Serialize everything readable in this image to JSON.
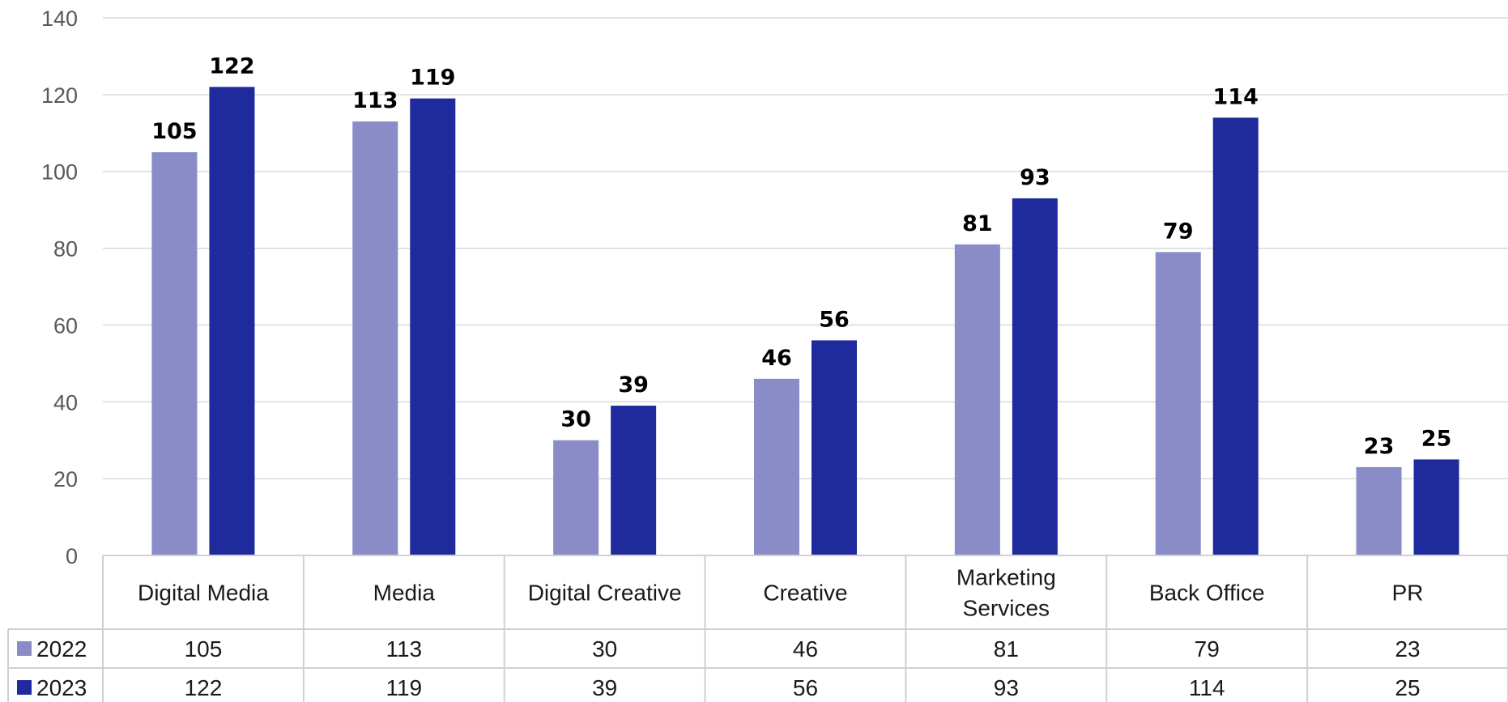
{
  "chart_data": {
    "type": "bar",
    "title": "",
    "xlabel": "",
    "ylabel": "",
    "ylim": [
      0,
      140
    ],
    "yticks": [
      0,
      20,
      40,
      60,
      80,
      100,
      120,
      140
    ],
    "grid": true,
    "legend": "data-table",
    "categories": [
      [
        "Digital Media"
      ],
      [
        "Media"
      ],
      [
        "Digital Creative"
      ],
      [
        "Creative"
      ],
      [
        "Marketing",
        "Services"
      ],
      [
        "Back Office"
      ],
      [
        "PR"
      ]
    ],
    "series": [
      {
        "name": "2022",
        "color": "#8a8cc8",
        "values": [
          105,
          113,
          30,
          46,
          81,
          79,
          23
        ]
      },
      {
        "name": "2023",
        "color": "#1f2a9c",
        "values": [
          122,
          119,
          39,
          56,
          93,
          114,
          25
        ]
      }
    ]
  }
}
